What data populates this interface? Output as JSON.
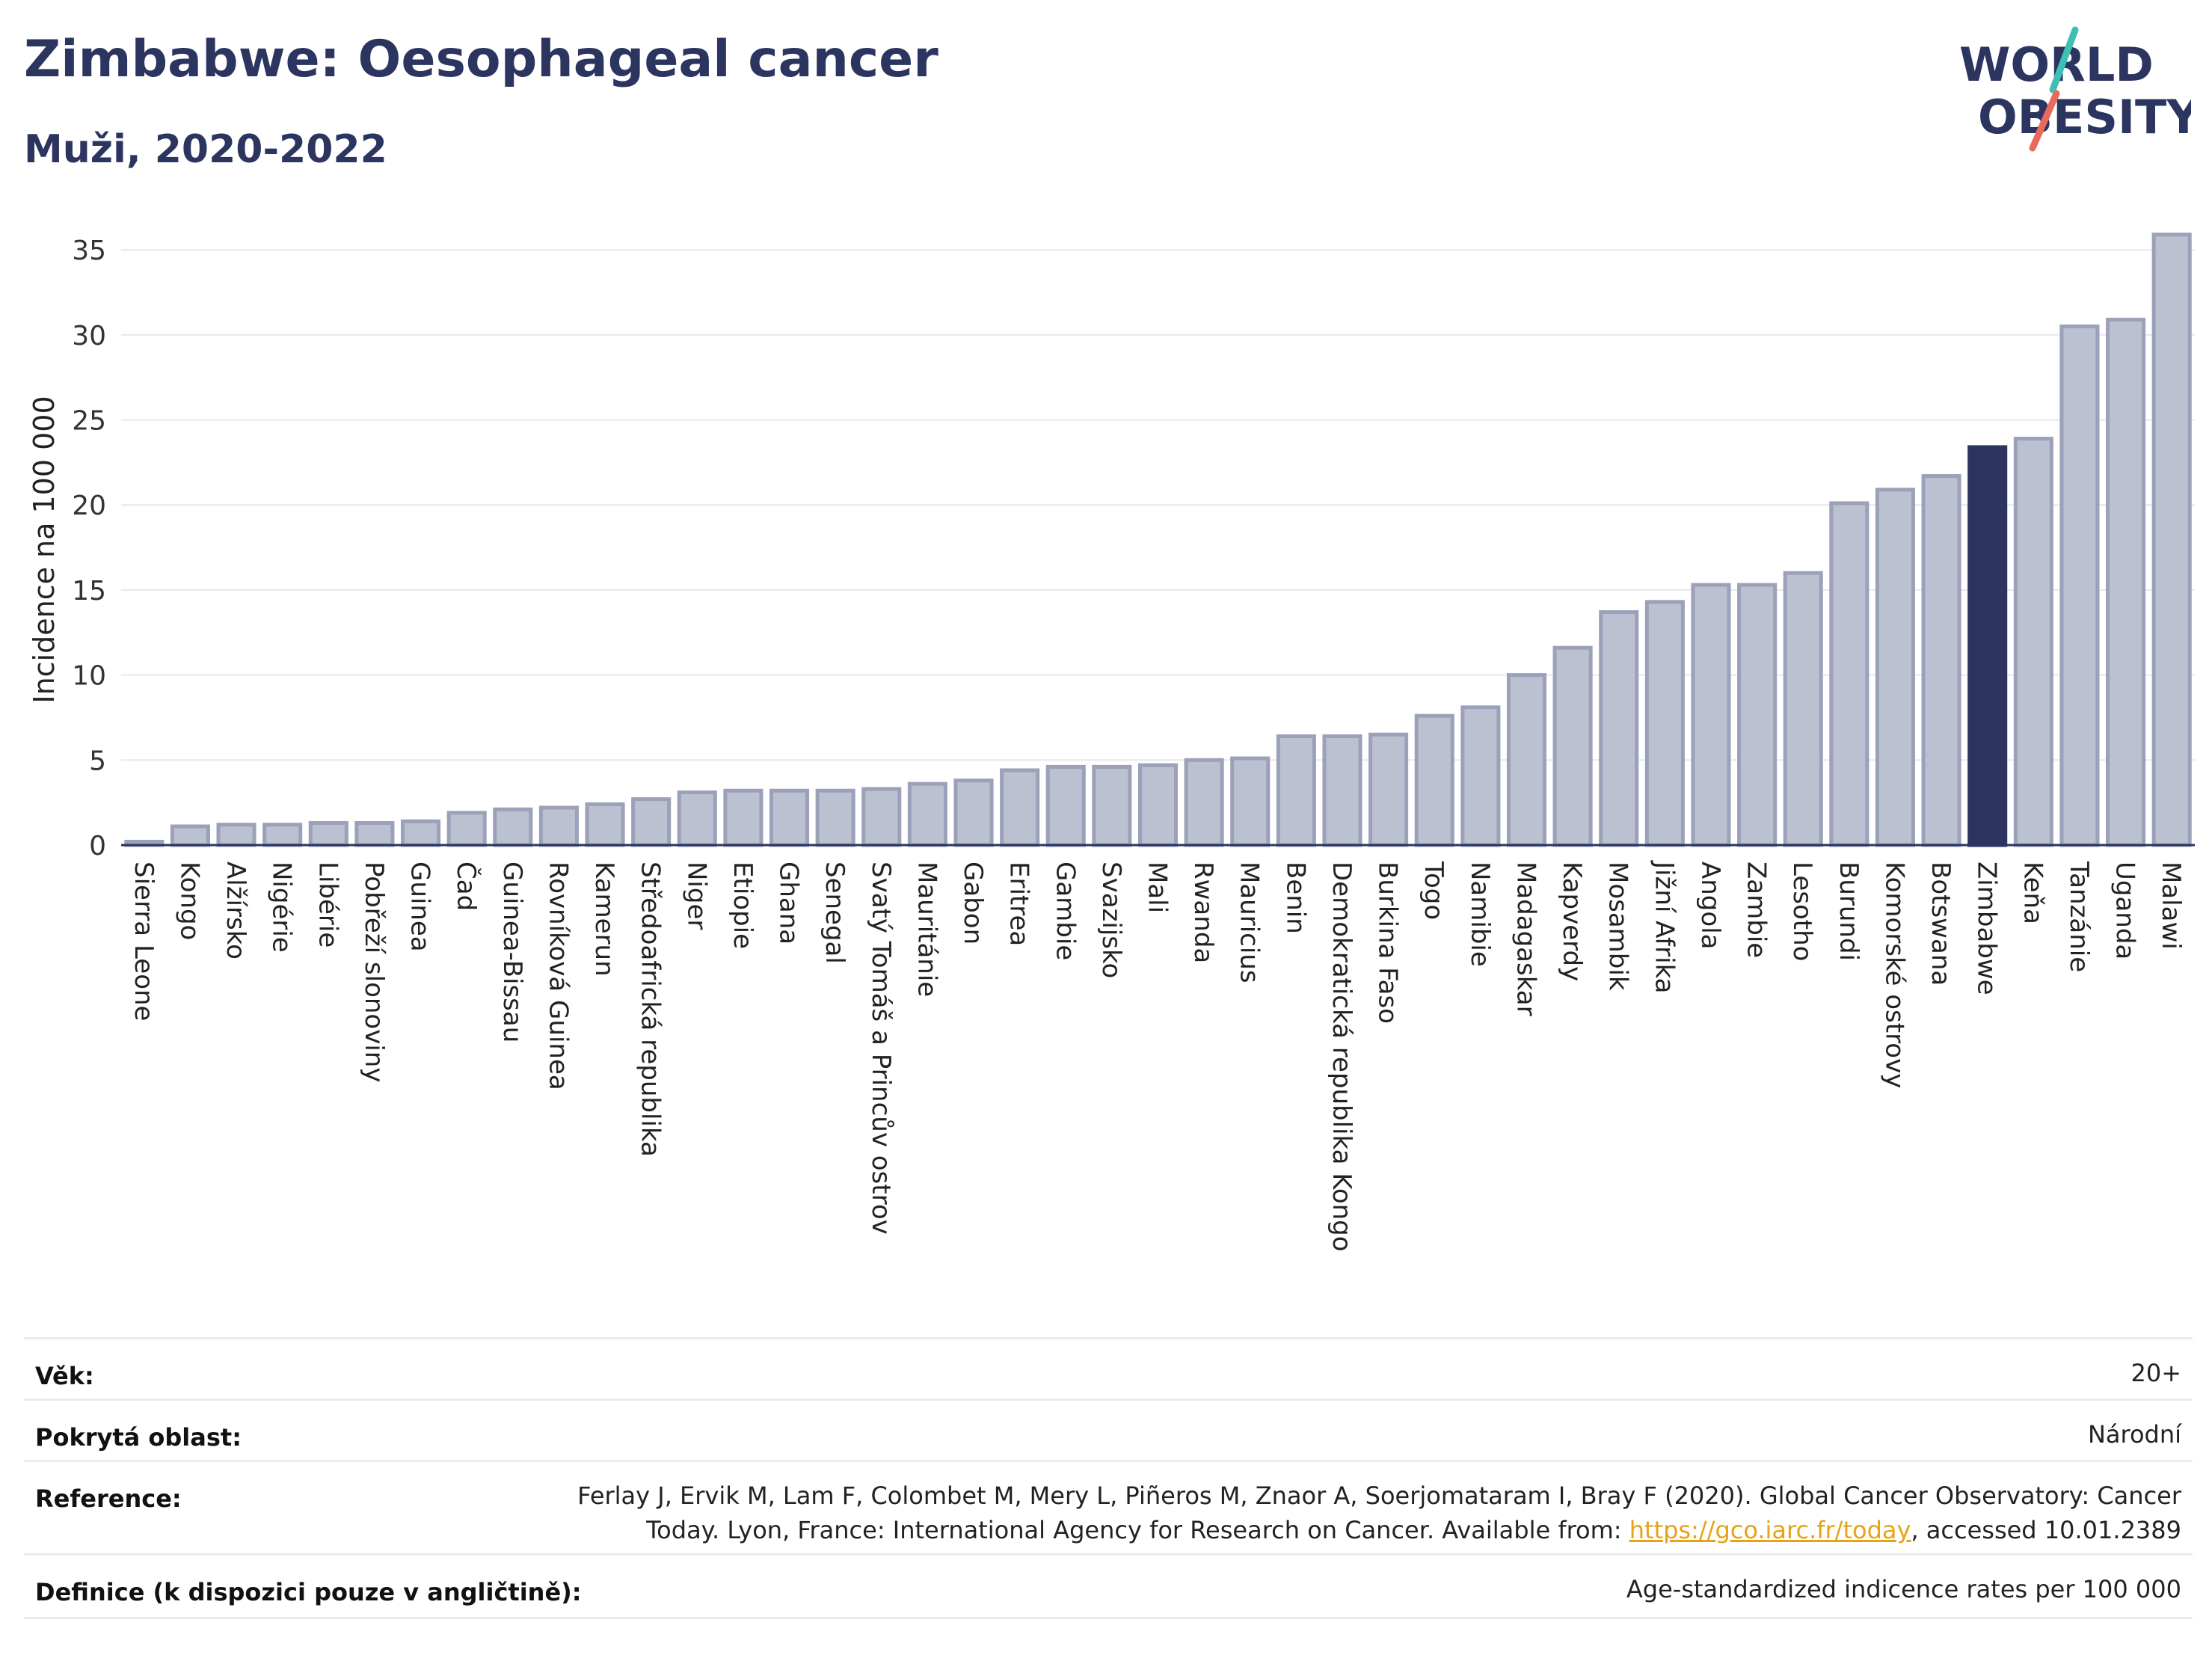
{
  "header": {
    "title": "Zimbabwe: Oesophageal cancer",
    "subtitle": "Muži, 2020-2022"
  },
  "logo": {
    "line1": "WORLD",
    "line2": "OBESITY",
    "accent_teal": "#3fbfb4",
    "accent_coral": "#e86a5c",
    "text_color": "#2b3560"
  },
  "chart_data": {
    "type": "bar",
    "ylabel": "Incidence na 100 000",
    "xlabel": "",
    "ylim": [
      0,
      36.5
    ],
    "yticks": [
      0,
      5,
      10,
      15,
      20,
      25,
      30,
      35
    ],
    "grid": true,
    "highlight": "Zimbabwe",
    "colors": {
      "bar": "#bcc1d1",
      "bar_border": "#9aa1b8",
      "highlight": "#2b3560"
    },
    "categories": [
      "Sierra Leone",
      "Kongo",
      "Alžírsko",
      "Nigérie",
      "Libérie",
      "Pobřeží slonoviny",
      "Guinea",
      "Čad",
      "Guinea-Bissau",
      "Rovníková Guinea",
      "Kamerun",
      "Středoafrická republika",
      "Niger",
      "Etiopie",
      "Ghana",
      "Senegal",
      "Svatý Tomáš a Princův ostrov",
      "Mauritánie",
      "Gabon",
      "Eritrea",
      "Gambie",
      "Svazijsko",
      "Mali",
      "Rwanda",
      "Mauricius",
      "Benin",
      "Demokratická republika Kongo",
      "Burkina Faso",
      "Togo",
      "Namibie",
      "Madagaskar",
      "Kapverdy",
      "Mosambik",
      "Jižní Afrika",
      "Angola",
      "Zambie",
      "Lesotho",
      "Burundi",
      "Komorské ostrovy",
      "Botswana",
      "Zimbabwe",
      "Keňa",
      "Tanzánie",
      "Uganda",
      "Malawi"
    ],
    "values": [
      0.2,
      1.1,
      1.2,
      1.2,
      1.3,
      1.3,
      1.4,
      1.9,
      2.1,
      2.2,
      2.4,
      2.7,
      3.1,
      3.2,
      3.2,
      3.2,
      3.3,
      3.6,
      3.8,
      4.4,
      4.6,
      4.6,
      4.7,
      5.0,
      5.1,
      6.4,
      6.4,
      6.5,
      7.6,
      8.1,
      10.0,
      11.6,
      13.7,
      14.3,
      15.3,
      15.3,
      16.0,
      20.1,
      20.9,
      21.7,
      23.4,
      23.9,
      30.5,
      30.9,
      35.9
    ]
  },
  "meta": {
    "rows": [
      {
        "label": "Věk:",
        "value": "20+"
      },
      {
        "label": "Pokrytá oblast:",
        "value": "Národní"
      },
      {
        "label": "Reference:",
        "value_line1": "Ferlay J, Ervik M, Lam F, Colombet M, Mery L, Piñeros M, Znaor A, Soerjomataram I, Bray F (2020). Global Cancer Observatory: Cancer",
        "value_line2_pre": "Today. Lyon, France: International Agency for Research on Cancer. Available from: ",
        "link": "https://gco.iarc.fr/today",
        "value_line2_post": ", accessed 10.01.2389"
      },
      {
        "label": "Definice (k dispozici pouze v angličtině):",
        "value": "Age-standardized indicence rates per 100 000"
      }
    ]
  }
}
